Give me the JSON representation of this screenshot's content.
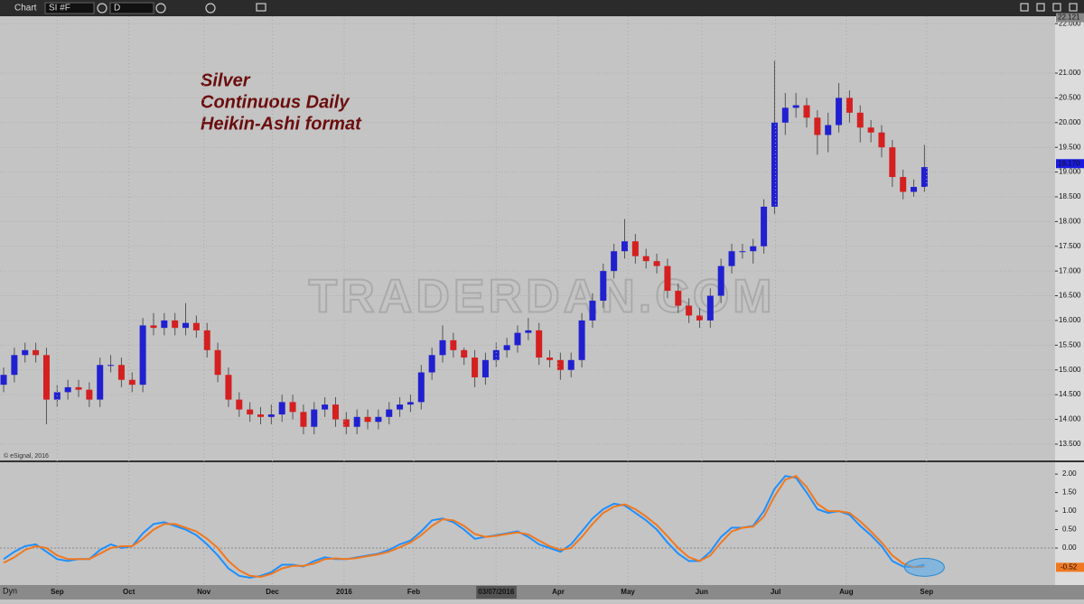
{
  "toolbar": {
    "title": "Chart",
    "symbol": "SI #F",
    "interval": "D"
  },
  "chart_data": [
    {
      "type": "candlestick",
      "annotations": [
        "Silver",
        "Continuous Daily",
        "Heikin-Ashi format"
      ],
      "watermark": "TRADERDAN.COM",
      "copyright": "© eSignal, 2016",
      "up_color": "#2020d0",
      "down_color": "#d42020",
      "xlim": [
        -0.34,
        98.2
      ],
      "ylim": [
        13.17,
        22.15
      ],
      "yticks": [
        {
          "value": 13.5,
          "label": "13.500"
        },
        {
          "value": 14,
          "label": "14.000"
        },
        {
          "value": 14.5,
          "label": "14.500"
        },
        {
          "value": 15,
          "label": "15.000"
        },
        {
          "value": 15.5,
          "label": "15.500"
        },
        {
          "value": 16,
          "label": "16.000"
        },
        {
          "value": 16.5,
          "label": "16.500"
        },
        {
          "value": 17,
          "label": "17.000"
        },
        {
          "value": 17.5,
          "label": "17.500"
        },
        {
          "value": 18,
          "label": "18.000"
        },
        {
          "value": 18.5,
          "label": "18.500"
        },
        {
          "value": 19,
          "label": "19.000"
        },
        {
          "value": 19.5,
          "label": "19.500"
        },
        {
          "value": 20,
          "label": "20.000"
        },
        {
          "value": 20.5,
          "label": "20.500"
        },
        {
          "value": 21,
          "label": "21.000"
        },
        {
          "value": 22,
          "label": "22.000"
        }
      ],
      "top_label": {
        "value": 22.121,
        "label": "22.121"
      },
      "last_value": {
        "value": 19.17,
        "label": "19.170"
      },
      "open": [
        14.7,
        14.9,
        15.3,
        15.4,
        15.3,
        14.4,
        14.55,
        14.65,
        14.6,
        14.4,
        15.1,
        15.1,
        14.8,
        14.7,
        15.9,
        15.85,
        16.0,
        15.85,
        15.95,
        15.8,
        15.4,
        14.9,
        14.4,
        14.2,
        14.1,
        14.05,
        14.1,
        14.35,
        14.15,
        13.85,
        14.2,
        14.3,
        14.0,
        13.85,
        14.05,
        13.95,
        14.05,
        14.2,
        14.3,
        14.35,
        14.95,
        15.3,
        15.6,
        15.4,
        15.25,
        14.85,
        15.2,
        15.4,
        15.5,
        15.75,
        15.8,
        15.25,
        15.2,
        15.0,
        15.2,
        16.0,
        16.4,
        17.0,
        17.4,
        17.6,
        17.3,
        17.2,
        17.1,
        16.6,
        16.3,
        16.1,
        16.0,
        16.5,
        17.1,
        17.4,
        17.4,
        17.5,
        18.3,
        20.0,
        20.3,
        20.35,
        20.1,
        19.75,
        19.95,
        20.5,
        20.2,
        19.9,
        19.8,
        19.5,
        18.9,
        18.6,
        18.7
      ],
      "high": [
        15.05,
        15.45,
        15.55,
        15.55,
        15.45,
        14.7,
        14.8,
        14.8,
        14.75,
        15.25,
        15.3,
        15.25,
        14.95,
        16.05,
        16.15,
        16.15,
        16.15,
        16.35,
        16.1,
        15.95,
        15.55,
        15.05,
        14.55,
        14.35,
        14.25,
        14.3,
        14.5,
        14.5,
        14.3,
        14.35,
        14.45,
        14.45,
        14.15,
        14.2,
        14.2,
        14.2,
        14.35,
        14.45,
        14.5,
        15.1,
        15.45,
        15.9,
        15.75,
        15.45,
        15.4,
        15.35,
        15.55,
        15.65,
        15.9,
        16.05,
        15.95,
        15.4,
        15.35,
        15.35,
        16.15,
        16.55,
        17.15,
        17.55,
        18.05,
        17.75,
        17.45,
        17.35,
        17.25,
        16.75,
        16.45,
        16.25,
        16.65,
        17.25,
        17.55,
        17.55,
        17.65,
        18.45,
        21.25,
        20.6,
        20.6,
        20.5,
        20.25,
        20.2,
        20.8,
        20.65,
        20.35,
        20.05,
        19.95,
        19.65,
        19.05,
        18.85,
        19.55
      ],
      "low": [
        14.55,
        14.75,
        15.15,
        15.15,
        13.9,
        14.25,
        14.4,
        14.45,
        14.25,
        14.25,
        14.95,
        14.65,
        14.55,
        14.55,
        15.7,
        15.7,
        15.7,
        15.7,
        15.65,
        15.25,
        14.75,
        14.25,
        14.05,
        13.95,
        13.9,
        13.9,
        13.95,
        14.0,
        13.7,
        13.7,
        14.05,
        13.85,
        13.7,
        13.7,
        13.8,
        13.8,
        13.9,
        14.05,
        14.15,
        14.2,
        14.8,
        15.15,
        15.25,
        15.1,
        14.65,
        14.7,
        15.05,
        15.25,
        15.35,
        15.6,
        15.1,
        15.05,
        14.8,
        14.85,
        15.05,
        15.85,
        16.25,
        16.85,
        17.25,
        17.15,
        17.05,
        16.95,
        16.45,
        16.15,
        15.95,
        15.85,
        15.85,
        16.35,
        16.95,
        17.25,
        17.15,
        17.35,
        18.15,
        19.75,
        20.1,
        19.9,
        19.35,
        19.4,
        19.8,
        20.0,
        19.6,
        19.6,
        19.3,
        18.7,
        18.45,
        18.5,
        18.6
      ],
      "close": [
        14.9,
        15.3,
        15.4,
        15.3,
        14.4,
        14.55,
        14.65,
        14.6,
        14.4,
        15.1,
        15.1,
        14.8,
        14.7,
        15.9,
        15.85,
        16.0,
        15.85,
        15.95,
        15.8,
        15.4,
        14.9,
        14.4,
        14.2,
        14.1,
        14.05,
        14.1,
        14.35,
        14.15,
        13.85,
        14.2,
        14.3,
        14.0,
        13.85,
        14.05,
        13.95,
        14.05,
        14.2,
        14.3,
        14.35,
        14.95,
        15.3,
        15.6,
        15.4,
        15.25,
        14.85,
        15.2,
        15.4,
        15.5,
        15.75,
        15.8,
        15.25,
        15.2,
        15.0,
        15.2,
        16.0,
        16.4,
        17.0,
        17.4,
        17.6,
        17.3,
        17.2,
        17.1,
        16.6,
        16.3,
        16.1,
        16.0,
        16.5,
        17.1,
        17.4,
        17.4,
        17.5,
        18.3,
        20.0,
        20.3,
        20.35,
        20.1,
        19.75,
        19.95,
        20.5,
        20.2,
        19.9,
        19.8,
        19.5,
        18.9,
        18.6,
        18.7,
        19.1
      ]
    },
    {
      "type": "line",
      "title": "Dyn",
      "xlim": [
        -0.34,
        98.2
      ],
      "ylim": [
        -1.0,
        2.32
      ],
      "xticks": [
        {
          "value": 5,
          "label": "Sep"
        },
        {
          "value": 11.7,
          "label": "Oct"
        },
        {
          "value": 18.7,
          "label": "Nov"
        },
        {
          "value": 25.1,
          "label": "Dec"
        },
        {
          "value": 31.8,
          "label": "2016"
        },
        {
          "value": 38.3,
          "label": "Feb"
        },
        {
          "value": 46,
          "label": "03/07/2016"
        },
        {
          "value": 51.8,
          "label": "Apr"
        },
        {
          "value": 58.3,
          "label": "May"
        },
        {
          "value": 65.2,
          "label": "Jun"
        },
        {
          "value": 72.1,
          "label": "Jul"
        },
        {
          "value": 78.7,
          "label": "Aug"
        },
        {
          "value": 86.2,
          "label": "Sep"
        }
      ],
      "yticks": [
        {
          "value": 0,
          "label": "0.00"
        },
        {
          "value": 0.5,
          "label": "0.50"
        },
        {
          "value": 1,
          "label": "1.00"
        },
        {
          "value": 1.5,
          "label": "1.50"
        },
        {
          "value": 2,
          "label": "2.00"
        }
      ],
      "last_value": {
        "value": -0.52,
        "label": "-0.52"
      },
      "series": [
        {
          "color": "#1e90ff",
          "values": [
            -0.3,
            -0.1,
            0.05,
            0.1,
            -0.1,
            -0.3,
            -0.35,
            -0.3,
            -0.3,
            -0.05,
            0.1,
            0.0,
            0.05,
            0.4,
            0.65,
            0.7,
            0.6,
            0.5,
            0.35,
            0.1,
            -0.2,
            -0.55,
            -0.75,
            -0.8,
            -0.75,
            -0.65,
            -0.45,
            -0.45,
            -0.5,
            -0.35,
            -0.25,
            -0.3,
            -0.3,
            -0.25,
            -0.2,
            -0.15,
            -0.05,
            0.1,
            0.2,
            0.45,
            0.75,
            0.8,
            0.7,
            0.5,
            0.25,
            0.3,
            0.35,
            0.4,
            0.45,
            0.3,
            0.1,
            0.0,
            -0.1,
            0.1,
            0.45,
            0.8,
            1.05,
            1.2,
            1.15,
            0.95,
            0.75,
            0.5,
            0.15,
            -0.15,
            -0.35,
            -0.35,
            -0.1,
            0.3,
            0.55,
            0.55,
            0.6,
            1.0,
            1.6,
            1.95,
            1.9,
            1.5,
            1.05,
            0.95,
            1.0,
            0.9,
            0.6,
            0.35,
            0.05,
            -0.35,
            -0.5,
            -0.52,
            -0.45
          ]
        },
        {
          "color": "#f07820",
          "values": [
            -0.4,
            -0.25,
            -0.05,
            0.05,
            0.0,
            -0.2,
            -0.3,
            -0.3,
            -0.3,
            -0.15,
            0.0,
            0.05,
            0.05,
            0.25,
            0.5,
            0.65,
            0.65,
            0.55,
            0.45,
            0.25,
            0.0,
            -0.35,
            -0.6,
            -0.75,
            -0.78,
            -0.7,
            -0.55,
            -0.48,
            -0.48,
            -0.42,
            -0.3,
            -0.28,
            -0.3,
            -0.27,
            -0.22,
            -0.17,
            -0.1,
            0.02,
            0.15,
            0.35,
            0.6,
            0.78,
            0.75,
            0.6,
            0.38,
            0.3,
            0.33,
            0.38,
            0.42,
            0.37,
            0.2,
            0.05,
            -0.05,
            0.0,
            0.3,
            0.65,
            0.95,
            1.12,
            1.18,
            1.05,
            0.85,
            0.62,
            0.32,
            0.0,
            -0.25,
            -0.35,
            -0.2,
            0.15,
            0.45,
            0.55,
            0.58,
            0.85,
            1.4,
            1.85,
            1.95,
            1.65,
            1.2,
            1.0,
            1.0,
            0.95,
            0.72,
            0.45,
            0.15,
            -0.2,
            -0.42,
            -0.52,
            -0.5
          ]
        }
      ]
    }
  ]
}
